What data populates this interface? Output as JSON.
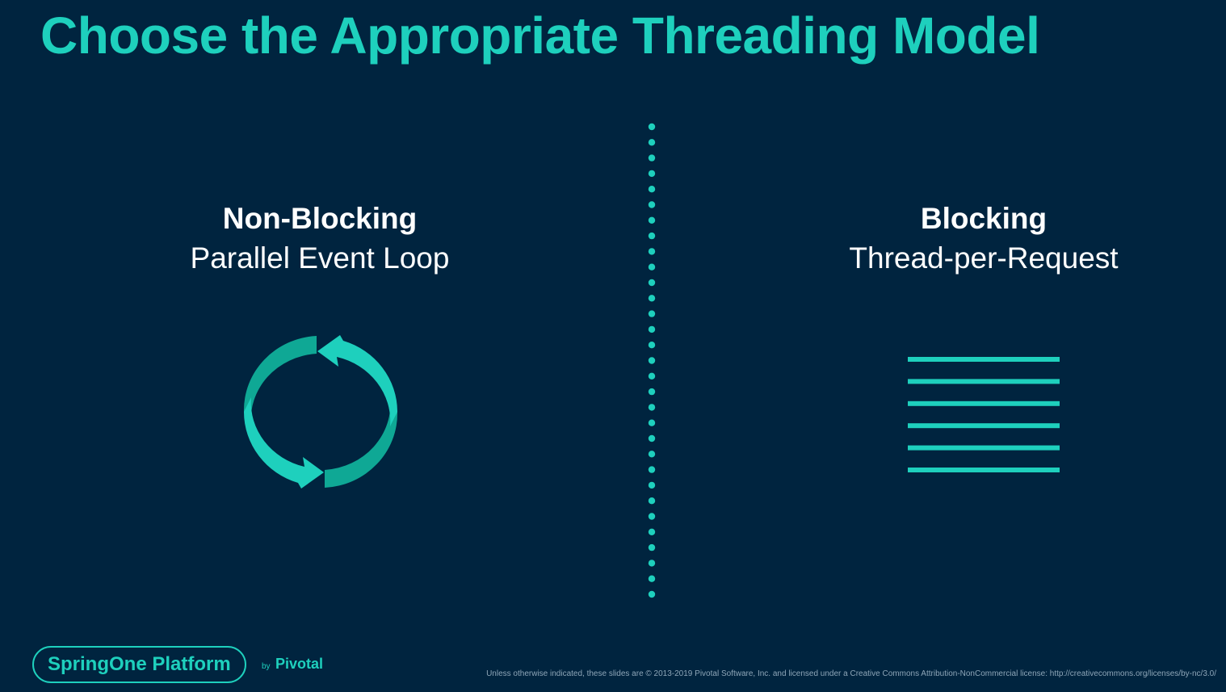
{
  "slide": {
    "title": "Choose the Appropriate Threading Model"
  },
  "left": {
    "heading": "Non-Blocking",
    "subheading": "Parallel Event Loop",
    "icon": "circular-arrows-icon"
  },
  "right": {
    "heading": "Blocking",
    "subheading": "Thread-per-Request",
    "icon": "stacked-lines-icon",
    "line_count": 6
  },
  "footer": {
    "brand": "SpringOne Platform",
    "by": "by",
    "company": "Pivotal",
    "license": "Unless otherwise indicated, these slides are © 2013-2019 Pivotal Software, Inc. and licensed under a Creative Commons Attribution-NonCommercial license: http://creativecommons.org/licenses/by-nc/3.0/"
  },
  "colors": {
    "background": "#00243f",
    "accent": "#1ed0bd",
    "text": "#ffffff"
  }
}
